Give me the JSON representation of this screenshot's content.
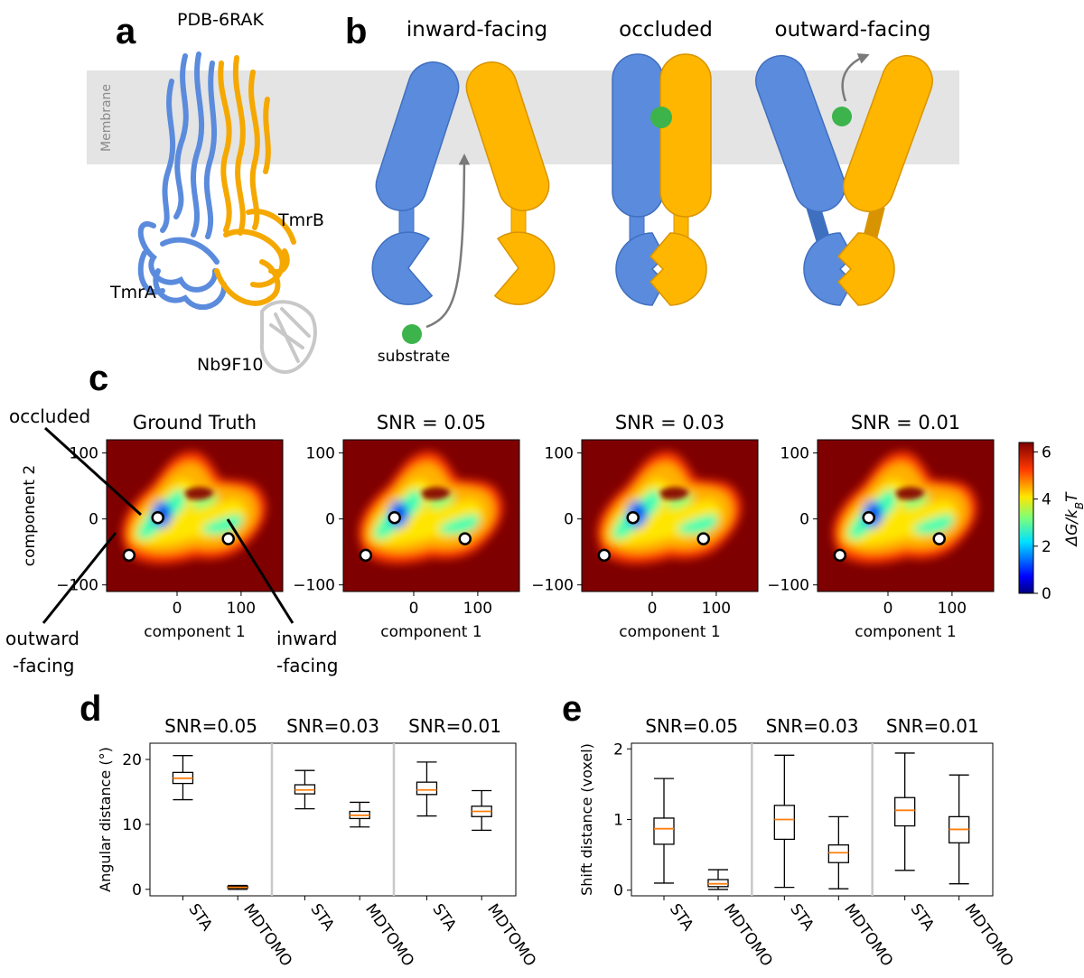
{
  "panels": {
    "a": "a",
    "b": "b",
    "c": "c",
    "d": "d",
    "e": "e"
  },
  "panel_a": {
    "pdb_label": "PDB-6RAK",
    "membrane_label": "Membrane",
    "tmrA": "TmrA",
    "tmrB": "TmrB",
    "nanobody": "Nb9F10",
    "colors": {
      "blue": "#5b8bdc",
      "orange": "#f5a800",
      "nanobody": "#d8d8d8"
    }
  },
  "panel_b": {
    "states": [
      "inward-facing",
      "occluded",
      "outward-facing"
    ],
    "substrate_label": "substrate",
    "colors": {
      "blue": "#5b8bdc",
      "orange": "#ffb600",
      "substrate": "#3cb44b",
      "membrane": "#e4e4e4"
    }
  },
  "panel_c": {
    "labels": {
      "occluded": "occluded",
      "outward1": "outward",
      "outward2": "-facing",
      "inward1": "inward",
      "inward2": "-facing"
    },
    "colorbar": {
      "label": "ΔG/k",
      "sub": "B",
      "tail": "T",
      "ticks": [
        "0",
        "2",
        "4",
        "6"
      ],
      "range": [
        0,
        6.4
      ]
    },
    "chart_data": [
      {
        "type": "heatmap",
        "title": "Ground Truth",
        "xlabel": "component 1",
        "ylabel": "component 2",
        "xticks": [
          "0",
          "100"
        ],
        "yticks": [
          "100",
          "0",
          "−100"
        ],
        "xlim": [
          -110,
          165
        ],
        "ylim": [
          -110,
          120
        ],
        "points": [
          {
            "name": "occluded",
            "x": -30,
            "y": 2
          },
          {
            "name": "outward-facing",
            "x": -75,
            "y": -55
          },
          {
            "name": "inward-facing",
            "x": 80,
            "y": -30
          }
        ]
      },
      {
        "type": "heatmap",
        "title": "SNR = 0.05",
        "xlabel": "component 1",
        "ylabel": "",
        "xticks": [
          "0",
          "100"
        ],
        "yticks": [
          "100",
          "0",
          "−100"
        ],
        "xlim": [
          -110,
          165
        ],
        "ylim": [
          -110,
          120
        ],
        "points": [
          {
            "x": -30,
            "y": 2
          },
          {
            "x": -75,
            "y": -55
          },
          {
            "x": 80,
            "y": -30
          }
        ]
      },
      {
        "type": "heatmap",
        "title": "SNR = 0.03",
        "xlabel": "component 1",
        "ylabel": "",
        "xticks": [
          "0",
          "100"
        ],
        "yticks": [
          "100",
          "0",
          "−100"
        ],
        "xlim": [
          -110,
          165
        ],
        "ylim": [
          -110,
          120
        ],
        "points": [
          {
            "x": -30,
            "y": 2
          },
          {
            "x": -75,
            "y": -55
          },
          {
            "x": 80,
            "y": -30
          }
        ]
      },
      {
        "type": "heatmap",
        "title": "SNR = 0.01",
        "xlabel": "component 1",
        "ylabel": "",
        "xticks": [
          "0",
          "100"
        ],
        "yticks": [
          "100",
          "0",
          "−100"
        ],
        "xlim": [
          -110,
          165
        ],
        "ylim": [
          -110,
          120
        ],
        "points": [
          {
            "x": -30,
            "y": 2
          },
          {
            "x": -75,
            "y": -55
          },
          {
            "x": 80,
            "y": -30
          }
        ]
      }
    ]
  },
  "chart_data": [
    {
      "type": "box",
      "panel": "d",
      "ylabel": "Angular distance (°)",
      "ylim": [
        -1,
        22.5
      ],
      "yticks": [
        0,
        10,
        20
      ],
      "groups": [
        {
          "title": "SNR=0.05",
          "boxes": [
            {
              "name": "STA",
              "min": 13.8,
              "q1": 16.3,
              "median": 17.1,
              "q3": 18.0,
              "max": 20.6
            },
            {
              "name": "MDTOMO",
              "min": 0.0,
              "q1": 0.2,
              "median": 0.3,
              "q3": 0.45,
              "max": 0.6
            }
          ]
        },
        {
          "title": "SNR=0.03",
          "boxes": [
            {
              "name": "STA",
              "min": 12.4,
              "q1": 14.7,
              "median": 15.3,
              "q3": 16.1,
              "max": 18.3
            },
            {
              "name": "MDTOMO",
              "min": 9.6,
              "q1": 10.9,
              "median": 11.4,
              "q3": 12.0,
              "max": 13.4
            }
          ]
        },
        {
          "title": "SNR=0.01",
          "boxes": [
            {
              "name": "STA",
              "min": 11.3,
              "q1": 14.6,
              "median": 15.3,
              "q3": 16.5,
              "max": 19.6
            },
            {
              "name": "MDTOMO",
              "min": 9.1,
              "q1": 11.2,
              "median": 12.0,
              "q3": 12.8,
              "max": 15.2
            }
          ]
        }
      ]
    },
    {
      "type": "box",
      "panel": "e",
      "ylabel": "Shift distance (voxel)",
      "ylim": [
        -0.08,
        2.08
      ],
      "yticks": [
        0,
        1,
        2
      ],
      "groups": [
        {
          "title": "SNR=0.05",
          "boxes": [
            {
              "name": "STA",
              "min": 0.1,
              "q1": 0.65,
              "median": 0.87,
              "q3": 1.02,
              "max": 1.58
            },
            {
              "name": "MDTOMO",
              "min": 0.01,
              "q1": 0.05,
              "median": 0.09,
              "q3": 0.15,
              "max": 0.29
            }
          ]
        },
        {
          "title": "SNR=0.03",
          "boxes": [
            {
              "name": "STA",
              "min": 0.04,
              "q1": 0.72,
              "median": 1.0,
              "q3": 1.2,
              "max": 1.91
            },
            {
              "name": "MDTOMO",
              "min": 0.02,
              "q1": 0.39,
              "median": 0.53,
              "q3": 0.64,
              "max": 1.04
            }
          ]
        },
        {
          "title": "SNR=0.01",
          "boxes": [
            {
              "name": "STA",
              "min": 0.28,
              "q1": 0.91,
              "median": 1.13,
              "q3": 1.31,
              "max": 1.94
            },
            {
              "name": "MDTOMO",
              "min": 0.09,
              "q1": 0.67,
              "median": 0.86,
              "q3": 1.04,
              "max": 1.63
            }
          ]
        }
      ]
    }
  ]
}
